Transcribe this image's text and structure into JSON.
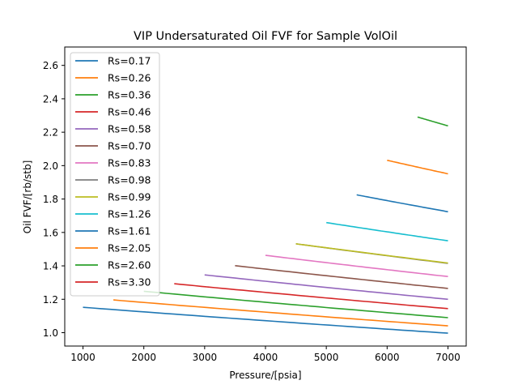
{
  "chart_data": {
    "type": "line",
    "title": "VIP  Undersaturated Oil FVF for Sample VolOil",
    "xlabel": "Pressure/[psia]",
    "ylabel": "Oil FVF/[rb/stb]",
    "xlim": [
      700,
      7300
    ],
    "ylim": [
      0.92,
      2.71
    ],
    "xticks": [
      1000,
      2000,
      3000,
      4000,
      5000,
      6000,
      7000
    ],
    "xtick_labels": [
      "1000",
      "2000",
      "3000",
      "4000",
      "5000",
      "6000",
      "7000"
    ],
    "yticks": [
      1.0,
      1.2,
      1.4,
      1.6,
      1.8,
      2.0,
      2.2,
      2.4,
      2.6
    ],
    "ytick_labels": [
      "1.0",
      "1.2",
      "1.4",
      "1.6",
      "1.8",
      "2.0",
      "2.2",
      "2.4",
      "2.6"
    ],
    "grid": false,
    "legend_position": "top-left",
    "series": [
      {
        "name": "Rs=0.17",
        "color": "#1f77b4",
        "x": [
          1000,
          7000
        ],
        "y": [
          1.152,
          0.997
        ]
      },
      {
        "name": "Rs=0.26",
        "color": "#ff7f0e",
        "x": [
          1500,
          7000
        ],
        "y": [
          1.196,
          1.041
        ]
      },
      {
        "name": "Rs=0.36",
        "color": "#2ca02c",
        "x": [
          2000,
          7000
        ],
        "y": [
          1.248,
          1.09
        ]
      },
      {
        "name": "Rs=0.46",
        "color": "#d62728",
        "x": [
          2500,
          7000
        ],
        "y": [
          1.293,
          1.144
        ]
      },
      {
        "name": "Rs=0.58",
        "color": "#9467bd",
        "x": [
          3000,
          7000
        ],
        "y": [
          1.346,
          1.2
        ]
      },
      {
        "name": "Rs=0.70",
        "color": "#8c564b",
        "x": [
          3500,
          7000
        ],
        "y": [
          1.401,
          1.265
        ]
      },
      {
        "name": "Rs=0.83",
        "color": "#e377c2",
        "x": [
          4000,
          7000
        ],
        "y": [
          1.463,
          1.336
        ]
      },
      {
        "name": "Rs=0.98",
        "color": "#7f7f7f",
        "x": [
          4500,
          7000
        ],
        "y": [
          1.532,
          1.415
        ]
      },
      {
        "name": "Rs=0.99",
        "color": "#bcbd22",
        "x": [
          4500,
          7000
        ],
        "y": [
          1.532,
          1.417
        ]
      },
      {
        "name": "Rs=1.26",
        "color": "#17becf",
        "x": [
          5000,
          7000
        ],
        "y": [
          1.659,
          1.55
        ]
      },
      {
        "name": "Rs=1.61",
        "color": "#1f77b4",
        "x": [
          5500,
          7000
        ],
        "y": [
          1.825,
          1.724
        ]
      },
      {
        "name": "Rs=2.05",
        "color": "#ff7f0e",
        "x": [
          6000,
          7000
        ],
        "y": [
          2.032,
          1.951
        ]
      },
      {
        "name": "Rs=2.60",
        "color": "#2ca02c",
        "x": [
          6500,
          7000
        ],
        "y": [
          2.291,
          2.238
        ]
      },
      {
        "name": "Rs=3.30",
        "color": "#d62728",
        "x": [],
        "y": []
      }
    ]
  }
}
